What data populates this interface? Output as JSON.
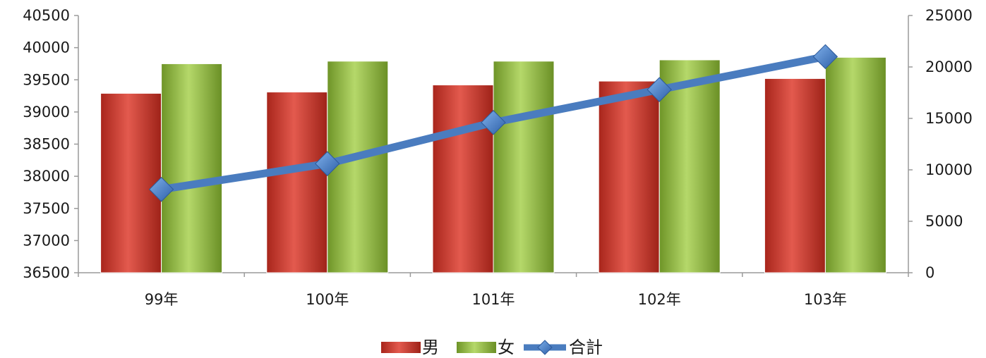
{
  "chart_data": {
    "type": "bar",
    "categories": [
      "99年",
      "100年",
      "101年",
      "102年",
      "103年"
    ],
    "series": [
      {
        "name": "男",
        "axis": "left",
        "kind": "bar",
        "color": "#c0392b",
        "values": [
          39290,
          39310,
          39420,
          39480,
          39520
        ]
      },
      {
        "name": "女",
        "axis": "left",
        "kind": "bar",
        "color": "#8db33a",
        "values": [
          39750,
          39790,
          39790,
          39810,
          39850
        ]
      },
      {
        "name": "合計",
        "axis": "right",
        "kind": "line",
        "color": "#4a7cbf",
        "values": [
          8100,
          10600,
          14600,
          17800,
          21000
        ]
      }
    ],
    "y_left": {
      "min": 36500,
      "max": 40500,
      "ticks": [
        36500,
        37000,
        37500,
        38000,
        38500,
        39000,
        39500,
        40000,
        40500
      ]
    },
    "y_right": {
      "min": 0,
      "max": 25000,
      "ticks": [
        0,
        5000,
        10000,
        15000,
        20000,
        25000
      ]
    },
    "grid": false,
    "legend_position": "bottom"
  }
}
